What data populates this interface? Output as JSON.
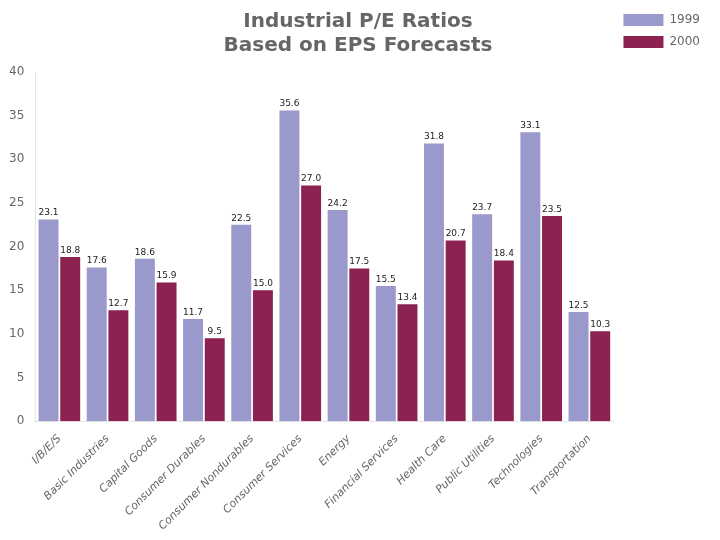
{
  "chart_data": {
    "type": "bar",
    "title": [
      "Industrial P/E Ratios",
      "Based on EPS Forecasts"
    ],
    "categories": [
      "I/B/E/S",
      "Basic Industries",
      "Capital Goods",
      "Consumer Durables",
      "Consumer Nondurables",
      "Consumer Services",
      "Energy",
      "Financial Services",
      "Health Care",
      "Public Utilities",
      "Technologies",
      "Transportation"
    ],
    "series": [
      {
        "name": "1999",
        "color": "#9999CC",
        "values": [
          23.1,
          17.6,
          18.6,
          11.7,
          22.5,
          35.6,
          24.2,
          15.5,
          31.8,
          23.7,
          33.1,
          12.5
        ],
        "value_labels": [
          "23.1",
          "17.6",
          "18.6",
          "11.7",
          "22.5",
          "35.6",
          "24.2",
          "15.5",
          "31.8",
          "23.7",
          "33.1",
          "12.5"
        ]
      },
      {
        "name": "2000",
        "color": "#8B2252",
        "values": [
          18.8,
          12.7,
          15.9,
          9.5,
          15.0,
          27.0,
          17.5,
          13.4,
          20.7,
          18.4,
          23.5,
          10.3
        ],
        "value_labels": [
          "18.8",
          "12.7",
          "15.9",
          "9.5",
          "15.0",
          "27.0",
          "17.5",
          "13.4",
          "20.7",
          "18.4",
          "23.5",
          "10.3"
        ]
      }
    ],
    "ylim": [
      0,
      40
    ],
    "yticks": [
      0,
      5,
      10,
      15,
      20,
      25,
      30,
      35,
      40
    ],
    "grid": false,
    "legend": "right",
    "data_labels": true
  }
}
